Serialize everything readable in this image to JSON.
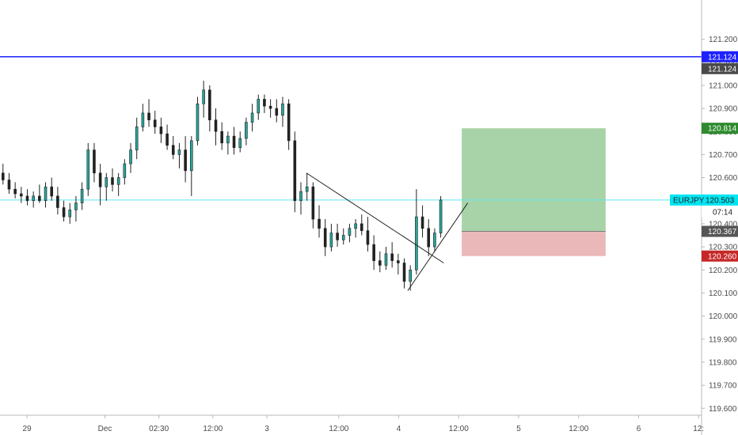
{
  "chart_data": {
    "type": "candlestick",
    "symbol": "EURJPY",
    "last_price": "120.503",
    "countdown": "07:14",
    "ylim": [
      119.57,
      121.37
    ],
    "y_ticks": [
      "121.200",
      "121.100",
      "121.000",
      "120.900",
      "120.800",
      "120.700",
      "120.600",
      "120.500",
      "120.400",
      "120.300",
      "120.200",
      "120.100",
      "120.000",
      "119.900",
      "119.800",
      "119.700",
      "119.600"
    ],
    "x_ticks": [
      "29",
      "Dec",
      "02:30",
      "12:00",
      "3",
      "12:00",
      "4",
      "12:00",
      "5",
      "12:00",
      "6",
      "12:"
    ],
    "x_tick_index": [
      4,
      17,
      26,
      35,
      44,
      56,
      66,
      76,
      86,
      96,
      106,
      116
    ],
    "horizontal_line": {
      "price": "121.124",
      "color": "#1e22ff"
    },
    "position": {
      "target": "120.814",
      "entry": "120.367",
      "stop": "120.260",
      "start_index": 76.5,
      "end_index": 100.5
    },
    "trendlines": [
      {
        "from": [
          50.6,
          120.62
        ],
        "to": [
          73.5,
          120.23
        ]
      },
      {
        "from": [
          67.5,
          120.11
        ],
        "to": [
          77.5,
          120.49
        ]
      }
    ],
    "colors": {
      "up": "#26a69a",
      "down": "#222222",
      "wick": "#222222",
      "hline": "#1e22ff",
      "last_line": "#5ee8f0",
      "last_tag": "#00e5f2",
      "target_tag": "#2e8b2e",
      "stop_tag": "#c62828",
      "entry_tag": "#555555",
      "profit_zone": "#a8d3a9",
      "loss_zone": "#eab8b9",
      "axis_tag": "#4a4a4a"
    },
    "candles": [
      [
        120.62,
        120.66,
        120.57,
        120.59
      ],
      [
        120.59,
        120.62,
        120.53,
        120.55
      ],
      [
        120.55,
        120.58,
        120.51,
        120.53
      ],
      [
        120.53,
        120.56,
        120.49,
        120.52
      ],
      [
        120.52,
        120.55,
        120.48,
        120.5
      ],
      [
        120.5,
        120.54,
        120.47,
        120.52
      ],
      [
        120.52,
        120.57,
        120.49,
        120.5
      ],
      [
        120.5,
        120.58,
        120.47,
        120.56
      ],
      [
        120.56,
        120.6,
        120.5,
        120.52
      ],
      [
        120.52,
        120.56,
        120.44,
        120.47
      ],
      [
        120.47,
        120.5,
        120.41,
        120.43
      ],
      [
        120.43,
        120.49,
        120.4,
        120.46
      ],
      [
        120.46,
        120.52,
        120.41,
        120.49
      ],
      [
        120.49,
        120.58,
        120.46,
        120.55
      ],
      [
        120.55,
        120.75,
        120.52,
        120.72
      ],
      [
        120.72,
        120.75,
        120.58,
        120.62
      ],
      [
        120.62,
        120.66,
        120.48,
        120.56
      ],
      [
        120.56,
        120.62,
        120.5,
        120.6
      ],
      [
        120.6,
        120.64,
        120.54,
        120.57
      ],
      [
        120.57,
        120.62,
        120.52,
        120.6
      ],
      [
        120.6,
        120.68,
        120.57,
        120.66
      ],
      [
        120.66,
        120.75,
        120.62,
        120.72
      ],
      [
        120.72,
        120.86,
        120.68,
        120.82
      ],
      [
        120.82,
        120.92,
        120.8,
        120.88
      ],
      [
        120.88,
        120.94,
        120.82,
        120.85
      ],
      [
        120.85,
        120.89,
        120.79,
        120.82
      ],
      [
        120.82,
        120.86,
        120.75,
        120.79
      ],
      [
        120.79,
        120.83,
        120.72,
        120.74
      ],
      [
        120.74,
        120.78,
        120.68,
        120.7
      ],
      [
        120.7,
        120.75,
        120.64,
        120.72
      ],
      [
        120.72,
        120.78,
        120.58,
        120.63
      ],
      [
        120.63,
        120.78,
        120.52,
        120.76
      ],
      [
        120.76,
        120.95,
        120.74,
        120.92
      ],
      [
        120.92,
        121.02,
        120.86,
        120.98
      ],
      [
        120.98,
        121.0,
        120.8,
        120.85
      ],
      [
        120.85,
        120.9,
        120.74,
        120.8
      ],
      [
        120.8,
        120.84,
        120.72,
        120.75
      ],
      [
        120.75,
        120.8,
        120.7,
        120.78
      ],
      [
        120.78,
        120.82,
        120.7,
        120.73
      ],
      [
        120.73,
        120.8,
        120.71,
        120.77
      ],
      [
        120.77,
        120.86,
        120.74,
        120.84
      ],
      [
        120.84,
        120.92,
        120.8,
        120.88
      ],
      [
        120.88,
        120.96,
        120.85,
        120.94
      ],
      [
        120.94,
        120.96,
        120.88,
        120.91
      ],
      [
        120.91,
        120.94,
        120.86,
        120.9
      ],
      [
        120.9,
        120.94,
        120.84,
        120.87
      ],
      [
        120.87,
        120.95,
        120.82,
        120.92
      ],
      [
        120.92,
        120.94,
        120.72,
        120.76
      ],
      [
        120.76,
        120.8,
        120.45,
        120.5
      ],
      [
        120.5,
        120.58,
        120.44,
        120.54
      ],
      [
        120.54,
        120.62,
        120.5,
        120.56
      ],
      [
        120.56,
        120.58,
        120.38,
        120.42
      ],
      [
        120.42,
        120.48,
        120.34,
        120.38
      ],
      [
        120.38,
        120.42,
        120.26,
        120.3
      ],
      [
        120.3,
        120.4,
        120.28,
        120.36
      ],
      [
        120.36,
        120.4,
        120.3,
        120.33
      ],
      [
        120.33,
        120.38,
        120.31,
        120.35
      ],
      [
        120.35,
        120.4,
        120.32,
        120.38
      ],
      [
        120.38,
        120.42,
        120.34,
        120.4
      ],
      [
        120.4,
        120.44,
        120.35,
        120.37
      ],
      [
        120.37,
        120.43,
        120.28,
        120.31
      ],
      [
        120.31,
        120.35,
        120.2,
        120.24
      ],
      [
        120.24,
        120.28,
        120.19,
        120.22
      ],
      [
        120.22,
        120.3,
        120.2,
        120.27
      ],
      [
        120.27,
        120.32,
        120.21,
        120.24
      ],
      [
        120.24,
        120.27,
        120.18,
        120.23
      ],
      [
        120.23,
        120.25,
        120.12,
        120.15
      ],
      [
        120.15,
        120.22,
        120.11,
        120.2
      ],
      [
        120.2,
        120.55,
        120.18,
        120.43
      ],
      [
        120.43,
        120.48,
        120.34,
        120.38
      ],
      [
        120.38,
        120.42,
        120.26,
        120.3
      ],
      [
        120.3,
        120.38,
        120.28,
        120.36
      ],
      [
        120.36,
        120.52,
        120.34,
        120.503
      ]
    ],
    "x_span": [
      -0.5,
      116.5
    ]
  }
}
